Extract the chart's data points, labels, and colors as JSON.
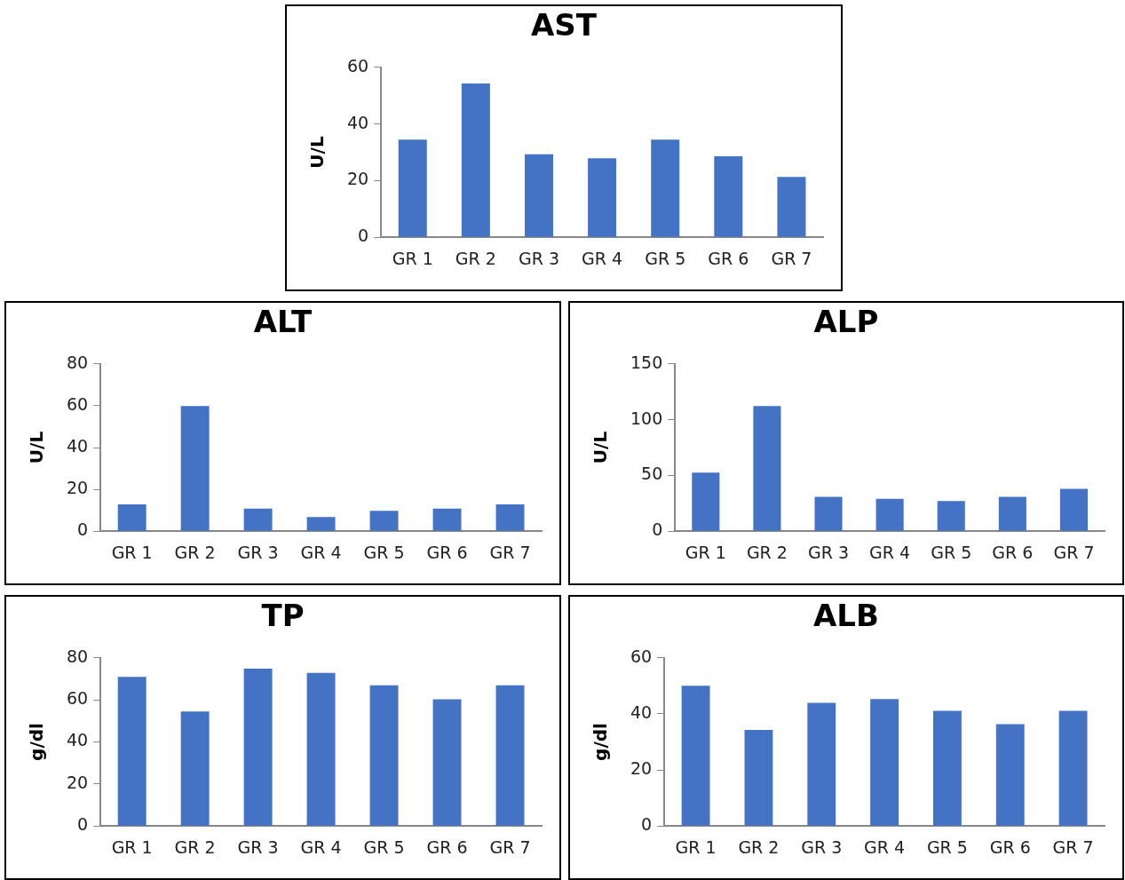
{
  "chart_data": [
    {
      "type": "bar",
      "title": "AST",
      "ylabel": "U/L",
      "categories": [
        "GR 1",
        "GR 2",
        "GR 3",
        "GR 4",
        "GR 5",
        "GR 6",
        "GR 7"
      ],
      "values": [
        34.5,
        54.3,
        29.3,
        27.9,
        34.5,
        28.6,
        21.3
      ],
      "color": "#4472c4",
      "ylim": [
        0,
        60
      ],
      "yticks": [
        0,
        20,
        40,
        60
      ]
    },
    {
      "type": "bar",
      "title": "ALT",
      "ylabel": "U/L",
      "categories": [
        "GR 1",
        "GR 2",
        "GR 3",
        "GR 4",
        "GR 5",
        "GR 6",
        "GR 7"
      ],
      "values": [
        12.8,
        59.9,
        10.8,
        6.8,
        9.7,
        10.8,
        12.8
      ],
      "color": "#4472c4",
      "ylim": [
        0,
        80
      ],
      "yticks": [
        0,
        20,
        40,
        60,
        80
      ]
    },
    {
      "type": "bar",
      "title": "ALP",
      "ylabel": "U/L",
      "categories": [
        "GR 1",
        "GR 2",
        "GR 3",
        "GR 4",
        "GR 5",
        "GR 6",
        "GR 7"
      ],
      "values": [
        52.5,
        112.3,
        30.8,
        29,
        27,
        30.8,
        38
      ],
      "color": "#4472c4",
      "ylim": [
        0,
        150
      ],
      "yticks": [
        0,
        50,
        100,
        150
      ]
    },
    {
      "type": "bar",
      "title": "TP",
      "ylabel": "g/dl",
      "categories": [
        "GR 1",
        "GR 2",
        "GR 3",
        "GR 4",
        "GR 5",
        "GR 6",
        "GR 7"
      ],
      "values": [
        70.9,
        54.5,
        74.8,
        72.8,
        66.9,
        60.3,
        66.9
      ],
      "color": "#4472c4",
      "ylim": [
        0,
        80
      ],
      "yticks": [
        0,
        20,
        40,
        60,
        80
      ]
    },
    {
      "type": "bar",
      "title": "ALB",
      "ylabel": "g/dl",
      "categories": [
        "GR 1",
        "GR 2",
        "GR 3",
        "GR 4",
        "GR 5",
        "GR 6",
        "GR 7"
      ],
      "values": [
        50,
        34.3,
        43.9,
        45.3,
        41.1,
        36.3,
        41.1
      ],
      "color": "#4472c4",
      "ylim": [
        0,
        60
      ],
      "yticks": [
        0,
        20,
        40,
        60
      ]
    }
  ]
}
